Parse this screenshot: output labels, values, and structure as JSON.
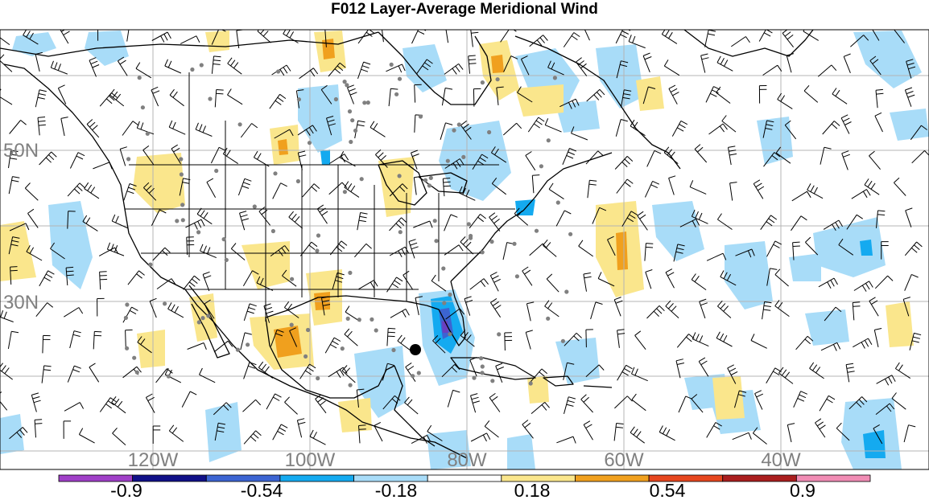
{
  "title": "F012 Layer-Average Meridional Wind",
  "lat_labels": [
    "50N",
    "30N"
  ],
  "lon_labels": [
    "120W",
    "100W",
    "80W",
    "60W",
    "40W"
  ],
  "colorbar": {
    "labels": [
      "-0.9",
      "-0.54",
      "-0.18",
      "0.18",
      "0.54",
      "0.9"
    ],
    "colors": [
      "#a040c8",
      "#101088",
      "#3c64d2",
      "#14aaf0",
      "#a8dcf8",
      "#ffffff",
      "#fae68c",
      "#f0a01e",
      "#e6461e",
      "#aa1e1e",
      "#f08cb4"
    ]
  },
  "palette": {
    "light_blue": "#a8dcf8",
    "mid_blue": "#14aaf0",
    "dark_blue": "#3c64d2",
    "purple": "#6a40c0",
    "light_yellow": "#fae68c",
    "orange": "#f0a01e",
    "grid": "#b4b4b4",
    "station_dot": "#808080",
    "outline": "#000000"
  },
  "storm_marker": "filled-black-circle"
}
